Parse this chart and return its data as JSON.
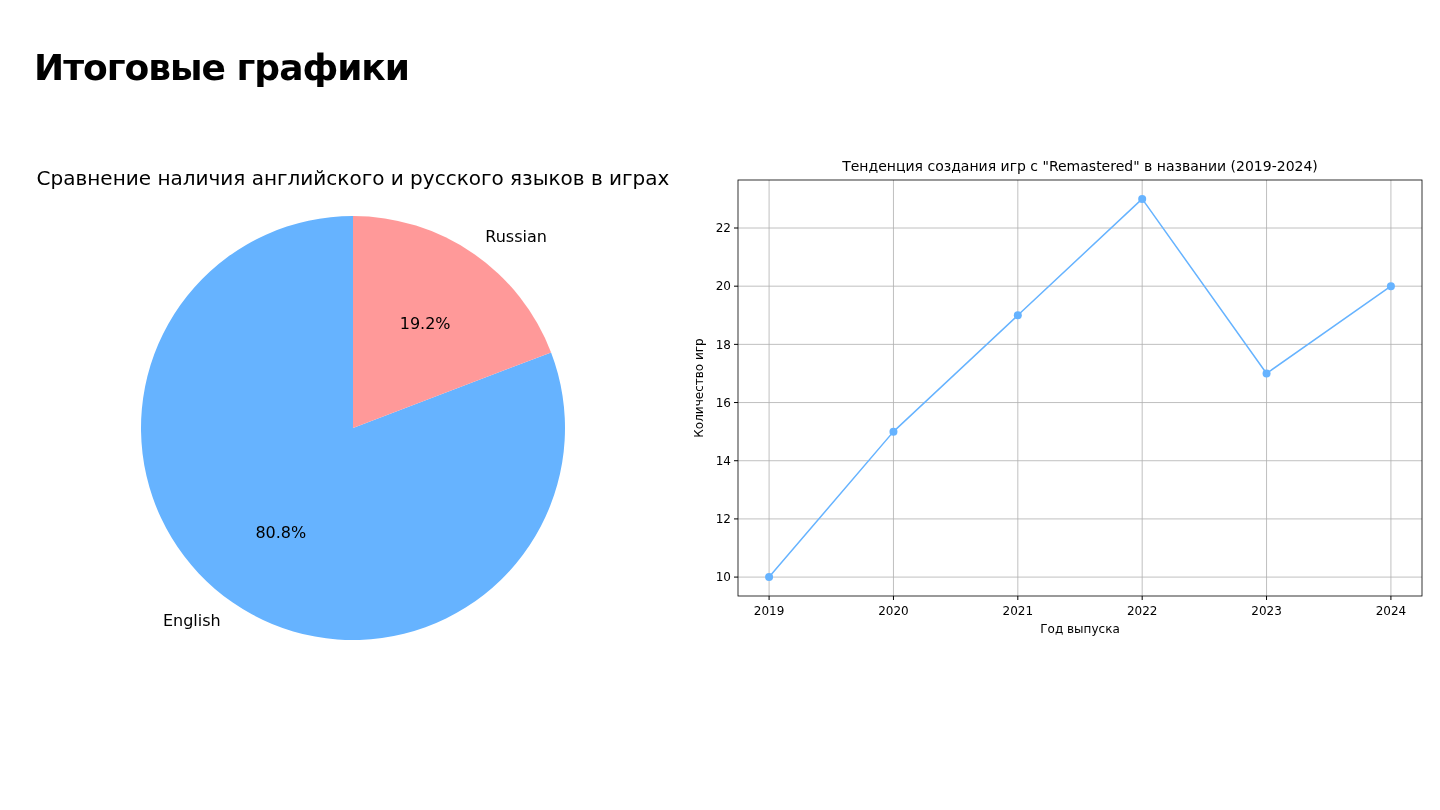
{
  "chart_data": [
    {
      "type": "pie",
      "title": "Сравнение наличия английского и русского языков в играх",
      "annotations": [
        "Итоговые графики"
      ],
      "categories": [
        "English",
        "Russian"
      ],
      "values": [
        80.8,
        19.2
      ],
      "colors": [
        "#66b3ff",
        "#ff9999"
      ],
      "value_labels": [
        "80.8%",
        "19.2%"
      ]
    },
    {
      "type": "line",
      "title": "Тенденция создания игр с \"Remastered\" в названии (2019-2024)",
      "xlabel": "Год выпуска",
      "ylabel": "Количество игр",
      "x": [
        2019,
        2020,
        2021,
        2022,
        2023,
        2024
      ],
      "values": [
        10,
        15,
        19,
        23,
        17,
        20
      ],
      "color": "#66b3ff",
      "marker": "circle",
      "grid": true,
      "xlim": [
        2018.75,
        2024.25
      ],
      "ylim": [
        9.35,
        23.65
      ],
      "xticks": [
        2019,
        2020,
        2021,
        2022,
        2023,
        2024
      ],
      "yticks": [
        10,
        12,
        14,
        16,
        18,
        20,
        22
      ]
    }
  ]
}
